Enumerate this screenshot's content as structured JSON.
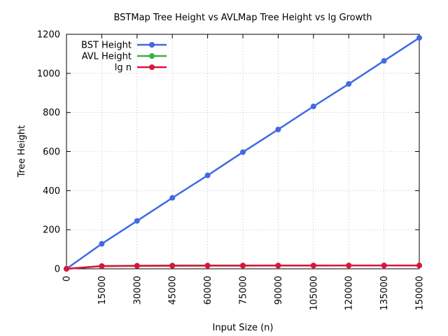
{
  "chart_data": {
    "type": "line",
    "title": "BSTMap Tree Height vs AVLMap Tree Height vs lg Growth",
    "xlabel": "Input Size (n)",
    "ylabel": "Tree Height",
    "xlim": [
      0,
      150000
    ],
    "ylim": [
      0,
      1200
    ],
    "x_ticks": [
      "0",
      "15000",
      "30000",
      "45000",
      "60000",
      "75000",
      "90000",
      "105000",
      "120000",
      "135000",
      "150000"
    ],
    "y_ticks": [
      "0",
      "200",
      "400",
      "600",
      "800",
      "1000",
      "1200"
    ],
    "grid": true,
    "legend_position": "top-left",
    "x": [
      0,
      15000,
      30000,
      45000,
      60000,
      75000,
      90000,
      105000,
      120000,
      135000,
      150000
    ],
    "series": [
      {
        "name": "BST Height",
        "color": "#4169e1",
        "values": [
          0,
          128,
          245,
          363,
          478,
          597,
          713,
          831,
          946,
          1064,
          1182
        ]
      },
      {
        "name": "AVL Height",
        "color": "#3cb043",
        "values": [
          0,
          14,
          16,
          17,
          17,
          17,
          17,
          17,
          17,
          17,
          17
        ]
      },
      {
        "name": "lg n",
        "color": "#dc143c",
        "values": [
          0,
          13.9,
          14.9,
          15.5,
          15.9,
          16.2,
          16.5,
          16.7,
          16.9,
          17.0,
          17.2
        ]
      }
    ]
  }
}
